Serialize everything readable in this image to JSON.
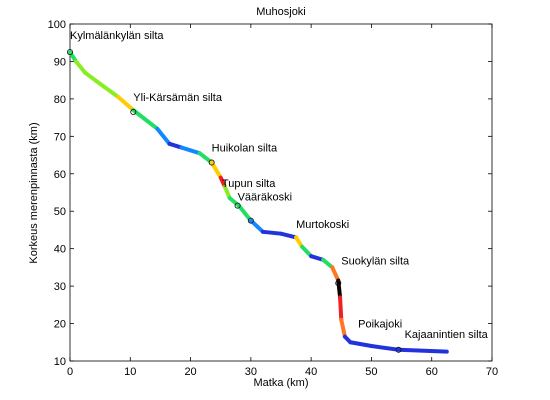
{
  "chart_data": {
    "type": "line",
    "title": "Muhosjoki",
    "xlabel": "Matka (km)",
    "ylabel": "Korkeus merenpinnasta (km)",
    "xlim": [
      0,
      70
    ],
    "ylim": [
      10,
      100
    ],
    "xticks": [
      "0",
      "10",
      "20",
      "30",
      "40",
      "50",
      "60",
      "70"
    ],
    "yticks": [
      "10",
      "20",
      "30",
      "40",
      "50",
      "60",
      "70",
      "80",
      "90",
      "100"
    ],
    "grid": false,
    "color_palette": [
      "#2233dd",
      "#1188ff",
      "#22dd66",
      "#88ee22",
      "#ffcc00",
      "#ff7722",
      "#ee2222",
      "#110000"
    ],
    "profile": [
      {
        "x": 0,
        "y": 92.5,
        "c": 4
      },
      {
        "x": 1,
        "y": 90,
        "c": 2
      },
      {
        "x": 2.5,
        "y": 87,
        "c": 3
      },
      {
        "x": 5,
        "y": 84,
        "c": 3
      },
      {
        "x": 8,
        "y": 80.5,
        "c": 3
      },
      {
        "x": 10.5,
        "y": 77,
        "c": 4
      },
      {
        "x": 12.5,
        "y": 74.5,
        "c": 2
      },
      {
        "x": 14.5,
        "y": 72,
        "c": 2
      },
      {
        "x": 16.5,
        "y": 68,
        "c": 1
      },
      {
        "x": 18.5,
        "y": 67,
        "c": 0
      },
      {
        "x": 21.5,
        "y": 65.5,
        "c": 1
      },
      {
        "x": 23.5,
        "y": 63,
        "c": 2
      },
      {
        "x": 25,
        "y": 59,
        "c": 4
      },
      {
        "x": 25.7,
        "y": 56.5,
        "c": 6
      },
      {
        "x": 26.5,
        "y": 53.5,
        "c": 3
      },
      {
        "x": 28,
        "y": 51.5,
        "c": 2
      },
      {
        "x": 30,
        "y": 47.5,
        "c": 2
      },
      {
        "x": 32,
        "y": 44.5,
        "c": 1
      },
      {
        "x": 35,
        "y": 44,
        "c": 0
      },
      {
        "x": 37.5,
        "y": 43,
        "c": 0
      },
      {
        "x": 38.5,
        "y": 40.5,
        "c": 4
      },
      {
        "x": 40,
        "y": 38,
        "c": 2
      },
      {
        "x": 42,
        "y": 37,
        "c": 0
      },
      {
        "x": 43.5,
        "y": 35,
        "c": 2
      },
      {
        "x": 44.5,
        "y": 31.5,
        "c": 5
      },
      {
        "x": 44.8,
        "y": 27,
        "c": 7
      },
      {
        "x": 45,
        "y": 21,
        "c": 6
      },
      {
        "x": 45.6,
        "y": 16.5,
        "c": 5
      },
      {
        "x": 46.5,
        "y": 15,
        "c": 0
      },
      {
        "x": 50,
        "y": 14,
        "c": 0
      },
      {
        "x": 54.5,
        "y": 13,
        "c": 0
      },
      {
        "x": 62.5,
        "y": 12.5,
        "c": 0
      }
    ],
    "bridges": [
      {
        "x": 0,
        "y": 92.5
      },
      {
        "x": 10.5,
        "y": 76.5
      },
      {
        "x": 23.5,
        "y": 63
      },
      {
        "x": 27.8,
        "y": 51.5
      },
      {
        "x": 30,
        "y": 47.5
      },
      {
        "x": 44.5,
        "y": 30.8
      },
      {
        "x": 54.5,
        "y": 13
      }
    ],
    "annotations": [
      {
        "text": "Kylmälänkylän silta",
        "x": 0,
        "y": 96
      },
      {
        "text": "Yli-Kärsämän silta",
        "x": 10.5,
        "y": 79.5
      },
      {
        "text": "Huikolan silta",
        "x": 23.5,
        "y": 66
      },
      {
        "text": "Tupun silta",
        "x": 25.2,
        "y": 56.5
      },
      {
        "text": "Vääräkoski",
        "x": 27.8,
        "y": 52.8
      },
      {
        "text": "Murtokoski",
        "x": 37.5,
        "y": 45.5
      },
      {
        "text": "Suokylän silta",
        "x": 45,
        "y": 35.8
      },
      {
        "text": "Poikajoki",
        "x": 47.8,
        "y": 19
      },
      {
        "text": "Kajaanintien silta",
        "x": 55.5,
        "y": 16.2
      }
    ]
  }
}
